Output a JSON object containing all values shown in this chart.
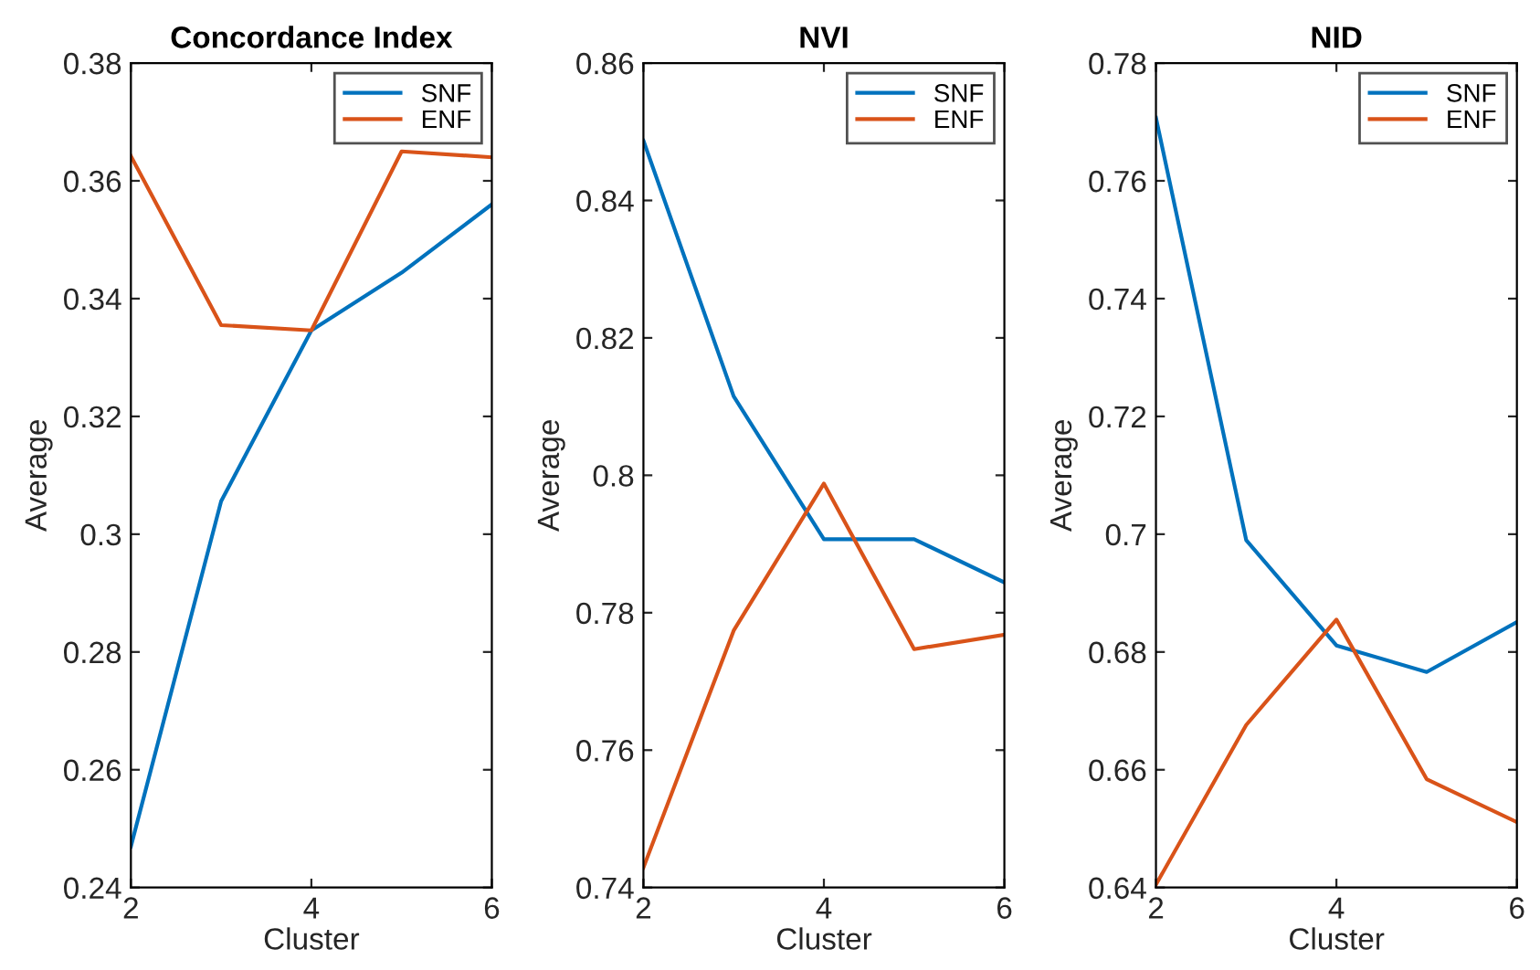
{
  "chart_data": [
    {
      "type": "line",
      "title": "Concordance Index",
      "xlabel": "Cluster",
      "ylabel": "Average",
      "x": [
        2,
        3,
        4,
        5,
        6
      ],
      "xlim": [
        2,
        6
      ],
      "xticks": [
        2,
        4,
        6
      ],
      "ylim": [
        0.24,
        0.38
      ],
      "yticks": [
        0.24,
        0.26,
        0.28,
        0.3,
        0.32,
        0.34,
        0.36,
        0.38
      ],
      "legend": "top right",
      "grid": false,
      "series": [
        {
          "name": "SNF",
          "color": "#0072bd",
          "values": [
            0.247,
            0.3056,
            0.3346,
            0.3444,
            0.356
          ]
        },
        {
          "name": "ENF",
          "color": "#d95319",
          "values": [
            0.3642,
            0.3355,
            0.3346,
            0.365,
            0.364
          ]
        }
      ]
    },
    {
      "type": "line",
      "title": "NVI",
      "xlabel": "Cluster",
      "ylabel": "Average",
      "x": [
        2,
        3,
        4,
        5,
        6
      ],
      "xlim": [
        2,
        6
      ],
      "xticks": [
        2,
        4,
        6
      ],
      "ylim": [
        0.74,
        0.86
      ],
      "yticks": [
        0.74,
        0.76,
        0.78,
        0.8,
        0.82,
        0.84,
        0.86
      ],
      "legend": "top right",
      "grid": false,
      "series": [
        {
          "name": "SNF",
          "color": "#0072bd",
          "values": [
            0.8487,
            0.8115,
            0.7907,
            0.7907,
            0.7844
          ]
        },
        {
          "name": "ENF",
          "color": "#d95319",
          "values": [
            0.7429,
            0.7774,
            0.7988,
            0.7747,
            0.7768
          ]
        }
      ]
    },
    {
      "type": "line",
      "title": "NID",
      "xlabel": "Cluster",
      "ylabel": "Average",
      "x": [
        2,
        3,
        4,
        5,
        6
      ],
      "xlim": [
        2,
        6
      ],
      "xticks": [
        2,
        4,
        6
      ],
      "ylim": [
        0.64,
        0.78
      ],
      "yticks": [
        0.64,
        0.66,
        0.68,
        0.7,
        0.72,
        0.74,
        0.76,
        0.78
      ],
      "legend": "top right",
      "grid": false,
      "series": [
        {
          "name": "SNF",
          "color": "#0072bd",
          "values": [
            0.7707,
            0.699,
            0.6811,
            0.6766,
            0.6851
          ]
        },
        {
          "name": "ENF",
          "color": "#d95319",
          "values": [
            0.6405,
            0.6676,
            0.6855,
            0.6584,
            0.6511
          ]
        }
      ]
    }
  ]
}
